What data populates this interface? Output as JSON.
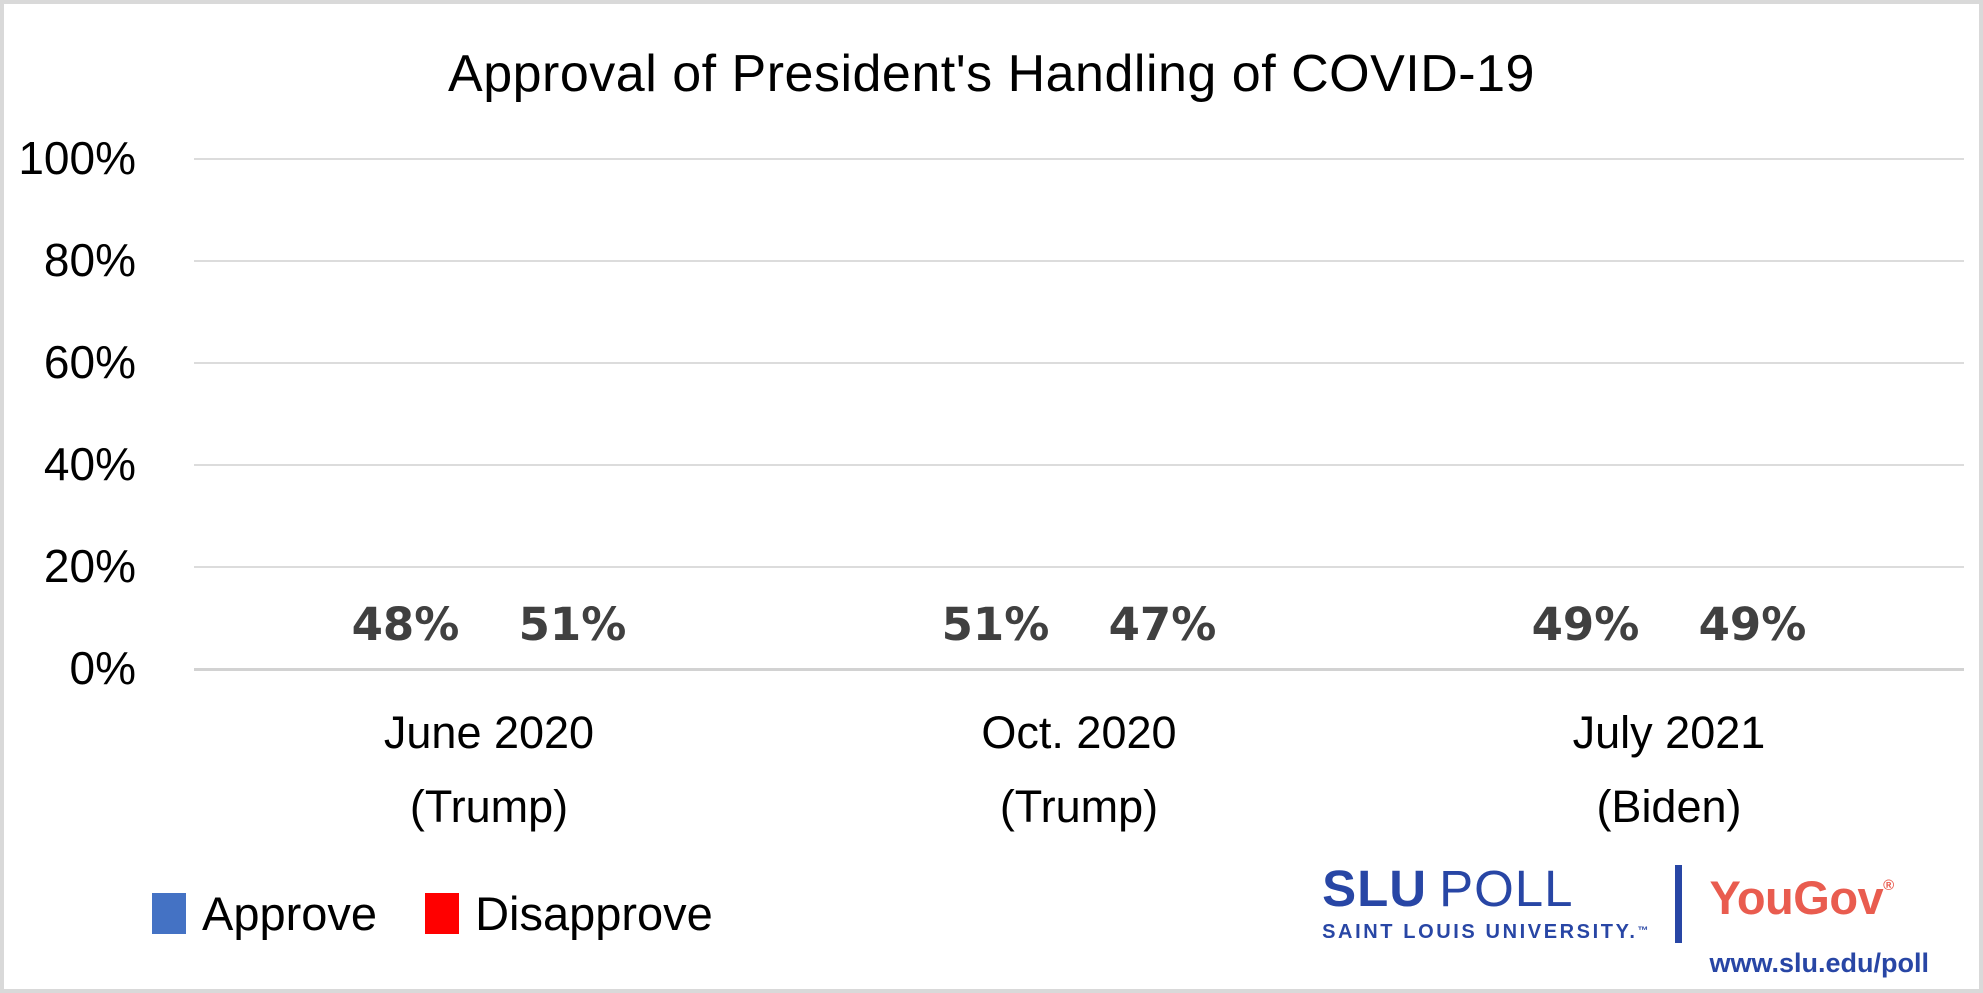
{
  "chart_data": {
    "type": "bar",
    "title": "Approval of President's Handling of COVID-19",
    "categories": [
      "June 2020",
      "Oct. 2020",
      "July 2021"
    ],
    "category_sublabels": [
      "(Trump)",
      "(Trump)",
      "(Biden)"
    ],
    "series": [
      {
        "name": "Approve",
        "color": "#4472C4",
        "values": [
          48,
          51,
          49
        ]
      },
      {
        "name": "Disapprove",
        "color": "#FF0000",
        "values": [
          51,
          47,
          49
        ]
      }
    ],
    "value_suffix": "%",
    "xlabel": "",
    "ylabel": "",
    "ylim": [
      0,
      100
    ],
    "ytick_values": [
      100,
      80,
      60,
      40,
      20,
      0
    ],
    "yticks": [
      "100%",
      "80%",
      "60%",
      "40%",
      "20%",
      "0%"
    ],
    "grid": true,
    "legend_position": "bottom-left",
    "label_color": "#404040",
    "gridline_color": "#DCDCDC"
  },
  "legend": {
    "items": [
      {
        "label": "Approve",
        "color": "#4472C4"
      },
      {
        "label": "Disapprove",
        "color": "#FF0000"
      }
    ]
  },
  "branding": {
    "slu": "SLU",
    "poll": "POLL",
    "university": "SAINT LOUIS UNIVERSITY.",
    "trademark": "™",
    "yougov": "YouGov",
    "registered": "®",
    "url": "www.slu.edu/poll",
    "slu_blue": "#2846A5",
    "yougov_red": "#E95C4F"
  }
}
